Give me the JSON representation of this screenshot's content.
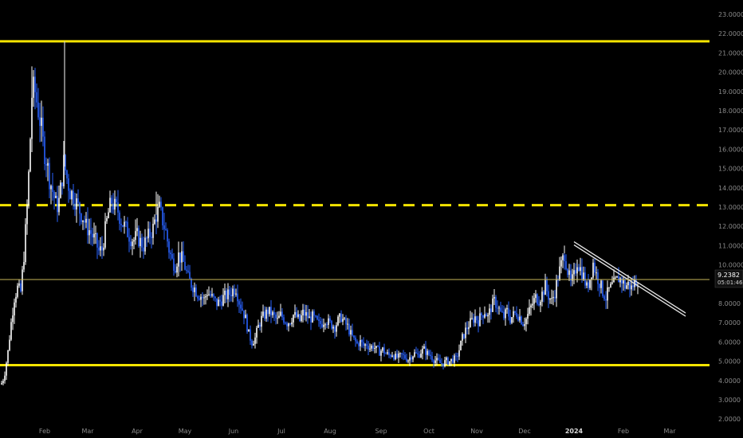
{
  "chart_data": {
    "type": "candlestick",
    "y_axis": {
      "position": "right",
      "range": [
        2.0,
        23.0
      ],
      "ticks": [
        "23.0000",
        "22.0000",
        "21.0000",
        "20.0000",
        "19.0000",
        "18.0000",
        "17.0000",
        "16.0000",
        "15.0000",
        "14.0000",
        "13.0000",
        "12.0000",
        "11.0000",
        "10.0000",
        "8.0000",
        "7.0000",
        "6.0000",
        "5.0000",
        "4.0000",
        "3.0000",
        "2.0000"
      ]
    },
    "x_axis": {
      "labels": [
        {
          "text": "Feb",
          "bold": false
        },
        {
          "text": "Mar",
          "bold": false
        },
        {
          "text": "Apr",
          "bold": false
        },
        {
          "text": "May",
          "bold": false
        },
        {
          "text": "Jun",
          "bold": false
        },
        {
          "text": "Jul",
          "bold": false
        },
        {
          "text": "Aug",
          "bold": false
        },
        {
          "text": "Sep",
          "bold": false
        },
        {
          "text": "Oct",
          "bold": false
        },
        {
          "text": "Nov",
          "bold": false
        },
        {
          "text": "Dec",
          "bold": false
        },
        {
          "text": "2024",
          "bold": true
        },
        {
          "text": "Feb",
          "bold": false
        },
        {
          "text": "Mar",
          "bold": false
        }
      ]
    },
    "price_path": [
      [
        0,
        3.8
      ],
      [
        3,
        3.9
      ],
      [
        6,
        4.4
      ],
      [
        10,
        5.5
      ],
      [
        14,
        7.0
      ],
      [
        18,
        8.3
      ],
      [
        22,
        8.8
      ],
      [
        26,
        8.6
      ],
      [
        30,
        10.5
      ],
      [
        34,
        13.0
      ],
      [
        37,
        15.5
      ],
      [
        40,
        18.8
      ],
      [
        43,
        19.2
      ],
      [
        46,
        18.5
      ],
      [
        49,
        17.8
      ],
      [
        52,
        17.0
      ],
      [
        55,
        16.0
      ],
      [
        58,
        15.5
      ],
      [
        62,
        14.5
      ],
      [
        65,
        14.0
      ],
      [
        68,
        13.5
      ],
      [
        71,
        13.0
      ],
      [
        74,
        13.3
      ],
      [
        77,
        14.2
      ],
      [
        80,
        15.3
      ],
      [
        84,
        14.5
      ],
      [
        88,
        13.8
      ],
      [
        92,
        13.6
      ],
      [
        96,
        13.2
      ],
      [
        100,
        12.8
      ],
      [
        104,
        12.5
      ],
      [
        108,
        12.0
      ],
      [
        112,
        11.8
      ],
      [
        116,
        11.5
      ],
      [
        120,
        11.2
      ],
      [
        124,
        10.7
      ],
      [
        128,
        10.8
      ],
      [
        132,
        11.8
      ],
      [
        136,
        12.7
      ],
      [
        140,
        13.3
      ],
      [
        144,
        13.0
      ],
      [
        148,
        12.8
      ],
      [
        152,
        12.3
      ],
      [
        156,
        12.0
      ],
      [
        160,
        11.7
      ],
      [
        164,
        11.4
      ],
      [
        168,
        11.3
      ],
      [
        172,
        11.5
      ],
      [
        176,
        11.2
      ],
      [
        180,
        11.0
      ],
      [
        184,
        11.3
      ],
      [
        188,
        11.6
      ],
      [
        192,
        11.9
      ],
      [
        196,
        12.6
      ],
      [
        200,
        12.9
      ],
      [
        204,
        12.3
      ],
      [
        208,
        11.7
      ],
      [
        212,
        10.8
      ],
      [
        216,
        10.2
      ],
      [
        220,
        10.0
      ],
      [
        224,
        10.5
      ],
      [
        228,
        10.3
      ],
      [
        232,
        9.9
      ],
      [
        236,
        9.3
      ],
      [
        240,
        9.0
      ],
      [
        244,
        8.8
      ],
      [
        248,
        8.5
      ],
      [
        252,
        8.4
      ],
      [
        256,
        8.2
      ],
      [
        260,
        8.6
      ],
      [
        264,
        8.4
      ],
      [
        268,
        8.2
      ],
      [
        272,
        8.0
      ],
      [
        276,
        8.1
      ],
      [
        280,
        8.3
      ],
      [
        284,
        8.4
      ],
      [
        288,
        8.5
      ],
      [
        292,
        8.7
      ],
      [
        296,
        8.8
      ],
      [
        300,
        8.1
      ],
      [
        304,
        7.7
      ],
      [
        308,
        7.2
      ],
      [
        312,
        6.4
      ],
      [
        316,
        6.0
      ],
      [
        320,
        6.2
      ],
      [
        324,
        6.8
      ],
      [
        328,
        7.2
      ],
      [
        332,
        7.4
      ],
      [
        336,
        7.6
      ],
      [
        340,
        7.5
      ],
      [
        344,
        7.3
      ],
      [
        348,
        7.1
      ],
      [
        352,
        7.4
      ],
      [
        356,
        7.2
      ],
      [
        360,
        7.0
      ],
      [
        364,
        7.1
      ],
      [
        368,
        7.4
      ],
      [
        372,
        7.3
      ],
      [
        376,
        7.1
      ],
      [
        380,
        7.5
      ],
      [
        384,
        7.4
      ],
      [
        388,
        7.2
      ],
      [
        392,
        7.3
      ],
      [
        396,
        7.1
      ],
      [
        400,
        6.9
      ],
      [
        404,
        7.0
      ],
      [
        408,
        7.2
      ],
      [
        412,
        7.0
      ],
      [
        416,
        6.9
      ],
      [
        420,
        6.8
      ],
      [
        424,
        7.1
      ],
      [
        428,
        7.3
      ],
      [
        432,
        7.0
      ],
      [
        436,
        6.8
      ],
      [
        440,
        6.4
      ],
      [
        444,
        6.1
      ],
      [
        448,
        5.9
      ],
      [
        452,
        6.0
      ],
      [
        456,
        5.8
      ],
      [
        460,
        5.9
      ],
      [
        464,
        5.7
      ],
      [
        468,
        5.8
      ],
      [
        472,
        5.6
      ],
      [
        476,
        5.5
      ],
      [
        480,
        5.6
      ],
      [
        484,
        5.4
      ],
      [
        488,
        5.3
      ],
      [
        492,
        5.4
      ],
      [
        496,
        5.2
      ],
      [
        500,
        5.2
      ],
      [
        504,
        5.3
      ],
      [
        508,
        5.2
      ],
      [
        512,
        5.1
      ],
      [
        516,
        5.3
      ],
      [
        520,
        5.4
      ],
      [
        524,
        5.3
      ],
      [
        528,
        5.5
      ],
      [
        532,
        5.6
      ],
      [
        536,
        5.4
      ],
      [
        540,
        5.3
      ],
      [
        544,
        5.1
      ],
      [
        548,
        5.0
      ],
      [
        552,
        4.9
      ],
      [
        556,
        4.9
      ],
      [
        560,
        5.0
      ],
      [
        564,
        5.0
      ],
      [
        568,
        5.1
      ],
      [
        572,
        5.1
      ],
      [
        576,
        5.6
      ],
      [
        580,
        6.2
      ],
      [
        584,
        6.6
      ],
      [
        588,
        6.9
      ],
      [
        592,
        7.1
      ],
      [
        596,
        7.3
      ],
      [
        600,
        7.1
      ],
      [
        604,
        7.4
      ],
      [
        608,
        7.6
      ],
      [
        612,
        7.3
      ],
      [
        616,
        7.8
      ],
      [
        620,
        8.1
      ],
      [
        624,
        7.9
      ],
      [
        628,
        7.5
      ],
      [
        632,
        7.3
      ],
      [
        636,
        7.6
      ],
      [
        640,
        7.2
      ],
      [
        644,
        7.4
      ],
      [
        648,
        7.5
      ],
      [
        652,
        7.3
      ],
      [
        656,
        7.0
      ],
      [
        660,
        7.2
      ],
      [
        664,
        7.6
      ],
      [
        668,
        8.0
      ],
      [
        672,
        8.3
      ],
      [
        676,
        8.2
      ],
      [
        680,
        8.5
      ],
      [
        684,
        8.9
      ],
      [
        688,
        8.4
      ],
      [
        692,
        8.1
      ],
      [
        696,
        8.6
      ],
      [
        700,
        9.4
      ],
      [
        704,
        10.0
      ],
      [
        708,
        10.6
      ],
      [
        712,
        9.7
      ],
      [
        716,
        9.0
      ],
      [
        720,
        9.4
      ],
      [
        724,
        10.2
      ],
      [
        728,
        9.8
      ],
      [
        732,
        9.4
      ],
      [
        736,
        8.8
      ],
      [
        740,
        9.3
      ],
      [
        744,
        10.1
      ],
      [
        748,
        9.5
      ],
      [
        752,
        9.1
      ],
      [
        756,
        8.6
      ],
      [
        760,
        8.3
      ],
      [
        764,
        8.7
      ],
      [
        768,
        8.9
      ],
      [
        772,
        9.1
      ],
      [
        776,
        9.3
      ],
      [
        780,
        9.2
      ],
      [
        784,
        8.9
      ],
      [
        788,
        9.0
      ],
      [
        792,
        8.8
      ],
      [
        796,
        9.1
      ],
      [
        800,
        9.24
      ]
    ],
    "spikes": [
      {
        "x": 81,
        "high": 21.6
      },
      {
        "x": 40,
        "high": 20.3
      },
      {
        "x": 196,
        "high": 13.8
      },
      {
        "x": 708,
        "high": 11.0
      }
    ],
    "horizontal_levels": [
      {
        "value": 21.6,
        "style": "solid",
        "color": "#f5e400"
      },
      {
        "value": 13.1,
        "style": "dashed",
        "color": "#f5e400"
      },
      {
        "value": 4.8,
        "style": "solid",
        "color": "#f5e400"
      }
    ],
    "current_price_line": {
      "value": 9.24,
      "color": "#c8b65a"
    },
    "trend_channel": {
      "from": {
        "x": 720,
        "value": 11.2
      },
      "to": {
        "x": 860,
        "value": 7.5
      },
      "color": "#e6e6e6"
    },
    "price_tag": {
      "value": "9.2382",
      "time": "05:01:46"
    },
    "colors": {
      "up": "#ffffff",
      "down": "#2962ff",
      "background": "#000000",
      "axis_text": "#8a8a8a"
    }
  }
}
